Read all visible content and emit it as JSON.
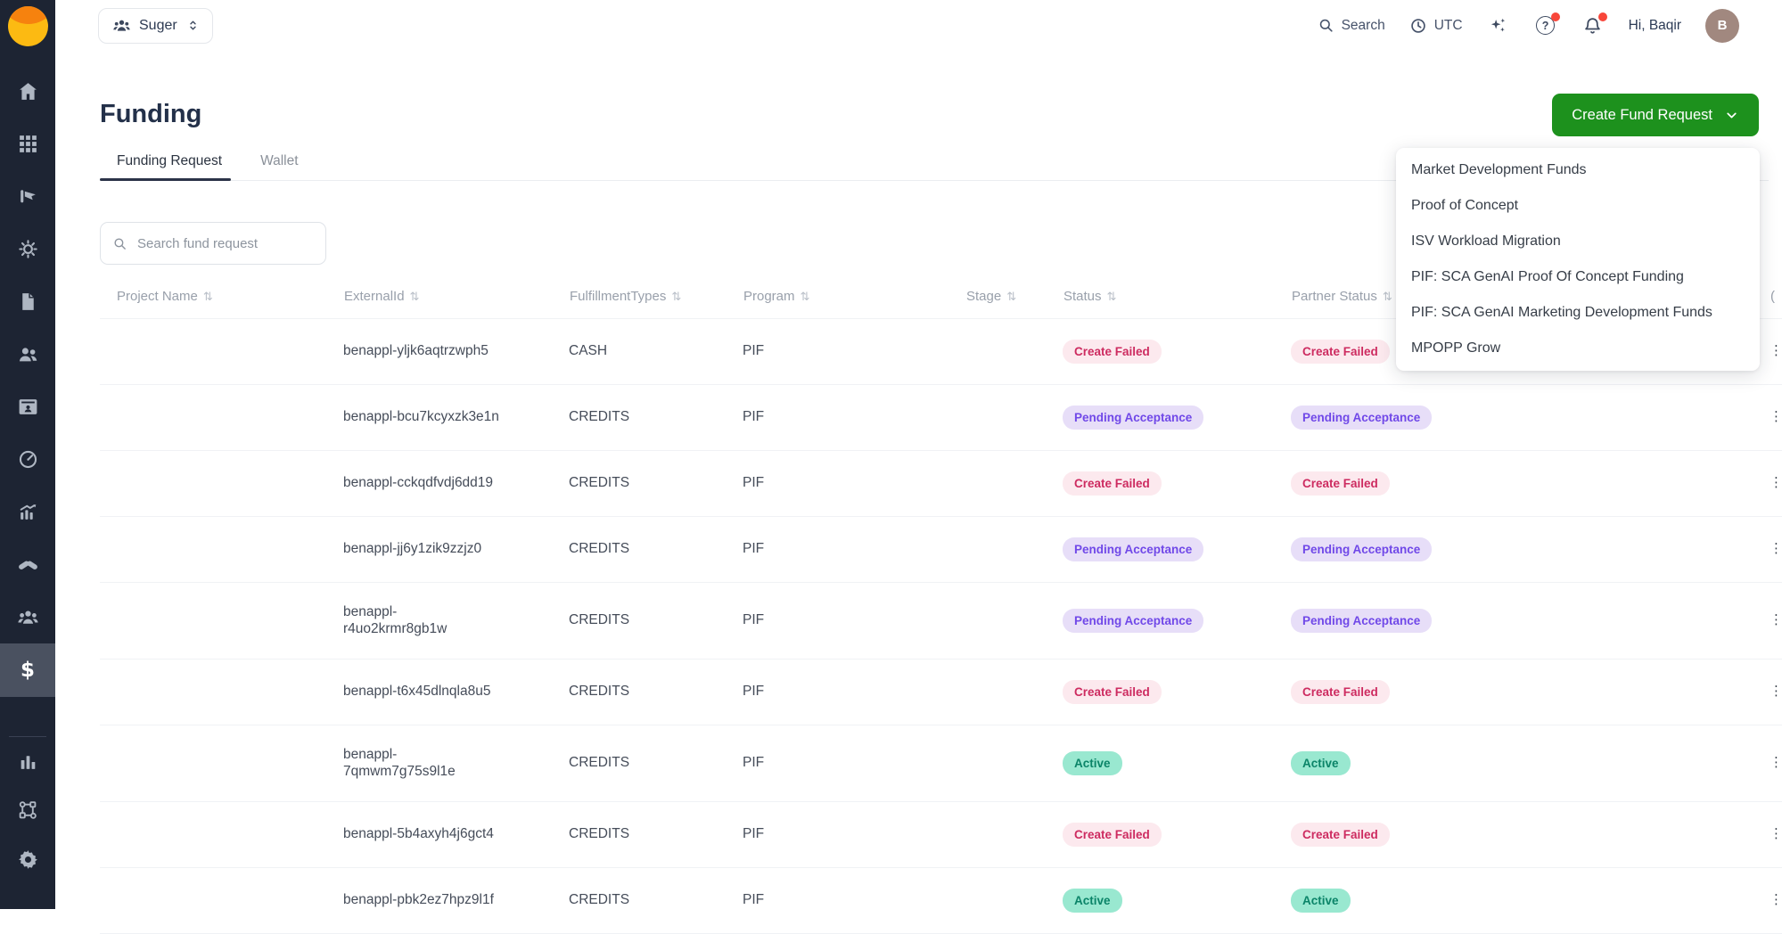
{
  "topbar": {
    "org": {
      "label": "Suger"
    },
    "search_label": "Search",
    "timezone_label": "UTC",
    "help_glyph": "?",
    "greeting": "Hi, Baqir",
    "avatar_initial": "B"
  },
  "sidebar": {
    "dollar_glyph": "$",
    "items": [
      {
        "icon": "home-icon"
      },
      {
        "icon": "apps-grid-icon"
      },
      {
        "icon": "flag-hand-icon"
      },
      {
        "icon": "sun-gear-icon"
      },
      {
        "icon": "document-icon"
      },
      {
        "icon": "users-icon"
      },
      {
        "icon": "contact-card-icon"
      },
      {
        "icon": "gauge-icon"
      },
      {
        "icon": "growth-chart-icon"
      },
      {
        "icon": "handshake-icon"
      },
      {
        "icon": "people-group-icon"
      },
      {
        "icon": "dollar-icon",
        "active": true
      },
      {
        "icon": "bar-chart-icon",
        "section": "bottom"
      },
      {
        "icon": "workflow-icon",
        "section": "bottom"
      },
      {
        "icon": "gear-icon",
        "section": "bottom"
      }
    ]
  },
  "page": {
    "title": "Funding",
    "tabs": [
      {
        "label": "Funding Request",
        "active": true
      },
      {
        "label": "Wallet",
        "active": false
      }
    ]
  },
  "toolbar": {
    "create_button_label": "Create Fund Request",
    "menu_items": [
      "Market Development Funds",
      "Proof of Concept",
      "ISV Workload Migration",
      "PIF: SCA GenAI Proof Of Concept Funding",
      "PIF: SCA GenAI Marketing Development Funds",
      "MPOPP Grow"
    ]
  },
  "search": {
    "placeholder": "Search fund request"
  },
  "table": {
    "sort_glyph": "⇅",
    "row_menu_glyph": "⋮",
    "clipped_column_header": "(",
    "columns": [
      "Project Name",
      "ExternalId",
      "FulfillmentTypes",
      "Program",
      "Stage",
      "Status",
      "Partner Status"
    ],
    "rows": [
      {
        "project_name": "",
        "external_id": "benappl-yljk6aqtrzwph5",
        "fulfillment_types": "CASH",
        "program": "PIF",
        "stage": "",
        "status": "Create Failed",
        "partner_status": "Create Failed"
      },
      {
        "project_name": "",
        "external_id": "benappl-bcu7kcyxzk3e1n",
        "fulfillment_types": "CREDITS",
        "program": "PIF",
        "stage": "",
        "status": "Pending Acceptance",
        "partner_status": "Pending Acceptance"
      },
      {
        "project_name": "",
        "external_id": "benappl-cckqdfvdj6dd19",
        "fulfillment_types": "CREDITS",
        "program": "PIF",
        "stage": "",
        "status": "Create Failed",
        "partner_status": "Create Failed"
      },
      {
        "project_name": "",
        "external_id": "benappl-jj6y1zik9zzjz0",
        "fulfillment_types": "CREDITS",
        "program": "PIF",
        "stage": "",
        "status": "Pending Acceptance",
        "partner_status": "Pending Acceptance"
      },
      {
        "project_name": "",
        "external_id": "benappl-\nr4uo2krmr8gb1w",
        "fulfillment_types": "CREDITS",
        "program": "PIF",
        "stage": "",
        "status": "Pending Acceptance",
        "partner_status": "Pending Acceptance"
      },
      {
        "project_name": "",
        "external_id": "benappl-t6x45dlnqla8u5",
        "fulfillment_types": "CREDITS",
        "program": "PIF",
        "stage": "",
        "status": "Create Failed",
        "partner_status": "Create Failed"
      },
      {
        "project_name": "",
        "external_id": "benappl-\n7qmwm7g75s9l1e",
        "fulfillment_types": "CREDITS",
        "program": "PIF",
        "stage": "",
        "status": "Active",
        "partner_status": "Active"
      },
      {
        "project_name": "",
        "external_id": "benappl-5b4axyh4j6gct4",
        "fulfillment_types": "CREDITS",
        "program": "PIF",
        "stage": "",
        "status": "Create Failed",
        "partner_status": "Create Failed"
      },
      {
        "project_name": "",
        "external_id": "benappl-pbk2ez7hpz9l1f",
        "fulfillment_types": "CREDITS",
        "program": "PIF",
        "stage": "",
        "status": "Active",
        "partner_status": "Active"
      }
    ]
  },
  "status_styles": {
    "Create Failed": "failed",
    "Pending Acceptance": "pending",
    "Active": "active"
  },
  "colors": {
    "sidebar_bg": "#1d2433",
    "sidebar_active_bg": "#4a5160",
    "accent_green": "#1d911d",
    "notification_red": "#f8463a",
    "avatar_bg": "#a1887f",
    "logo_orange": "#f6820e",
    "logo_yellow": "#fcba12",
    "status_failed_bg": "#fce9ee",
    "status_failed_text": "#cd2b60",
    "status_pending_bg": "#e7def8",
    "status_pending_text": "#7048e8",
    "status_active_bg": "#99e8d0",
    "status_active_text": "#0b8468"
  }
}
